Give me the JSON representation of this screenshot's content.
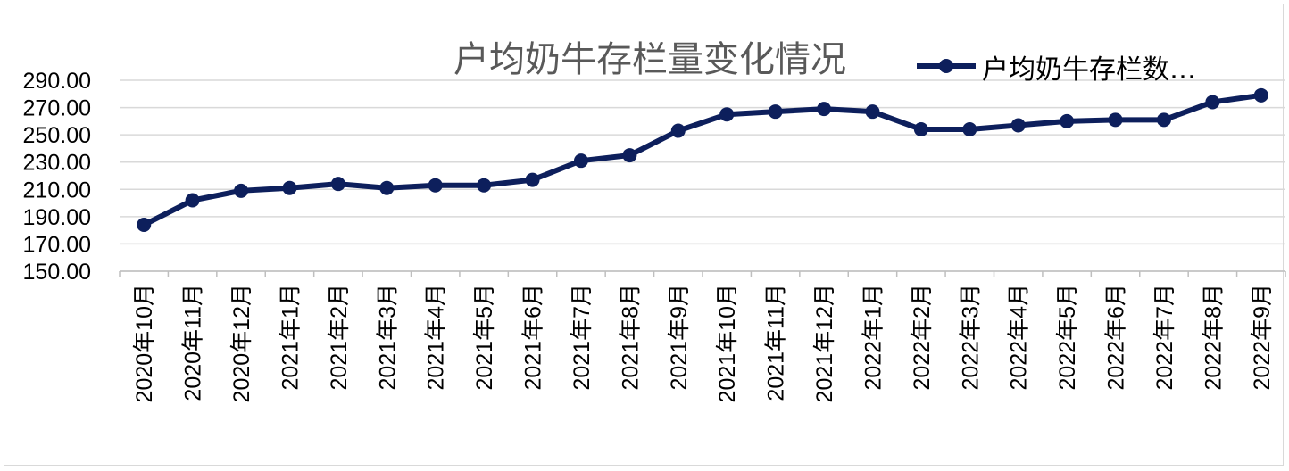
{
  "chart_data": {
    "type": "line",
    "title": "户均奶牛存栏量变化情况",
    "xlabel": "",
    "ylabel": "",
    "categories": [
      "2020年10月",
      "2020年11月",
      "2020年12月",
      "2021年1月",
      "2021年2月",
      "2021年3月",
      "2021年4月",
      "2021年5月",
      "2021年6月",
      "2021年7月",
      "2021年8月",
      "2021年9月",
      "2021年10月",
      "2021年11月",
      "2021年12月",
      "2022年1月",
      "2022年2月",
      "2022年3月",
      "2022年4月",
      "2022年5月",
      "2022年6月",
      "2022年7月",
      "2022年8月",
      "2022年9月"
    ],
    "series": [
      {
        "name": "户均奶牛存栏数…",
        "values": [
          184,
          202,
          209,
          211,
          214,
          211,
          213,
          213,
          217,
          231,
          235,
          253,
          265,
          267,
          269,
          267,
          254,
          254,
          257,
          260,
          261,
          261,
          274,
          279
        ],
        "color": "#0d1f5c"
      }
    ],
    "ylim": [
      150,
      290
    ],
    "yticks": [
      "150.00",
      "170.00",
      "190.00",
      "210.00",
      "230.00",
      "250.00",
      "270.00",
      "290.00"
    ],
    "grid": true,
    "legend_position": "top-right"
  }
}
